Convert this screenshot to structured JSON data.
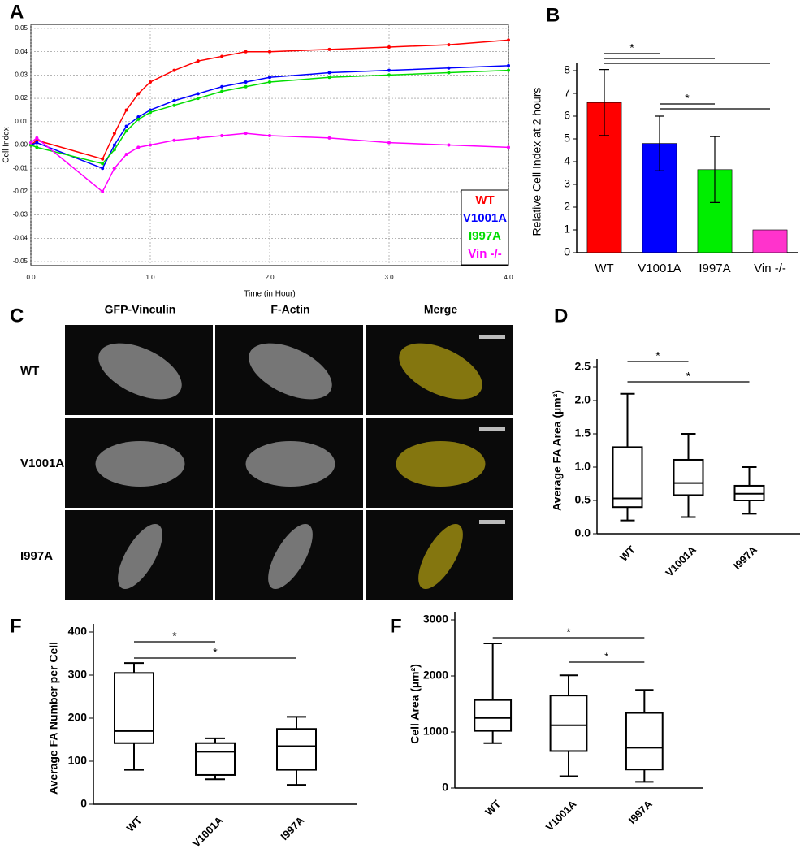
{
  "chart_data": [
    {
      "type": "line",
      "panel": "A",
      "xlabel": "Time (in Hour)",
      "ylabel": "Cell Index",
      "x": [
        0,
        0.05,
        0.6,
        0.7,
        0.8,
        0.9,
        1.0,
        1.2,
        1.4,
        1.6,
        1.8,
        2.0,
        2.5,
        3.0,
        3.5,
        4.0
      ],
      "series": [
        {
          "name": "WT",
          "color": "#ff0000",
          "values": [
            0,
            0.002,
            -0.006,
            0.005,
            0.015,
            0.022,
            0.027,
            0.032,
            0.036,
            0.038,
            0.04,
            0.04,
            0.041,
            0.042,
            0.043,
            0.045
          ]
        },
        {
          "name": "V1001A",
          "color": "#0000ff",
          "values": [
            0,
            0.001,
            -0.01,
            0,
            0.008,
            0.012,
            0.015,
            0.019,
            0.022,
            0.025,
            0.027,
            0.029,
            0.031,
            0.032,
            0.033,
            0.034
          ]
        },
        {
          "name": "I997A",
          "color": "#00dd00",
          "values": [
            0,
            -0.001,
            -0.008,
            -0.002,
            0.006,
            0.011,
            0.014,
            0.017,
            0.02,
            0.023,
            0.025,
            0.027,
            0.029,
            0.03,
            0.031,
            0.032
          ]
        },
        {
          "name": "Vin -/-",
          "color": "#ff00ff",
          "values": [
            0.001,
            0.003,
            -0.02,
            -0.01,
            -0.004,
            -0.001,
            0,
            0.002,
            0.003,
            0.004,
            0.005,
            0.004,
            0.003,
            0.001,
            0,
            -0.001
          ]
        }
      ],
      "xlim": [
        0,
        4
      ],
      "ylim": [
        -0.05,
        0.05
      ],
      "xticks": [
        {
          "value": 0,
          "label": "0.0"
        },
        {
          "value": 1,
          "label": "1.0"
        },
        {
          "value": 2,
          "label": "2.0"
        },
        {
          "value": 3,
          "label": "3.0"
        },
        {
          "value": 4,
          "label": "4.0"
        }
      ],
      "yticks": [
        0.05,
        0.04,
        0.03,
        0.02,
        0.01,
        {
          "value": 0,
          "label": "0.00"
        },
        -0.01,
        -0.02,
        -0.03,
        -0.04,
        -0.05
      ],
      "grid": true,
      "legend": "lower right"
    },
    {
      "type": "bar",
      "panel": "B",
      "ylabel": "Relative Cell Index at 2 hours",
      "categories": [
        "WT",
        "V1001A",
        "I997A",
        "Vin -/-"
      ],
      "values": [
        6.6,
        4.8,
        3.65,
        1
      ],
      "errors": [
        1.45,
        1.2,
        1.45,
        0
      ],
      "colors": [
        "#ff0000",
        "#0000ff",
        "#00ee00",
        "#ff33cc"
      ],
      "ylim": [
        0,
        8
      ],
      "yticks": [
        0,
        1,
        2,
        3,
        4,
        5,
        6,
        7,
        8
      ],
      "significance": [
        {
          "label": "*",
          "from": "WT",
          "to": [
            "V1001A",
            "I997A",
            "Vin -/-"
          ]
        },
        {
          "label": "*",
          "from": "V1001A",
          "to": [
            "I997A",
            "Vin -/-"
          ]
        }
      ]
    },
    {
      "type": "image",
      "panel": "C",
      "columns": [
        "GFP-Vinculin",
        "F-Actin",
        "Merge"
      ],
      "rows": [
        "WT",
        "V1001A",
        "I997A"
      ]
    },
    {
      "type": "box",
      "panel": "D",
      "ylabel": "Average FA Area (µm²)",
      "categories": [
        "WT",
        "V1001A",
        "I997A"
      ],
      "min": [
        0.2,
        0.25,
        0.3
      ],
      "q1": [
        0.4,
        0.58,
        0.5
      ],
      "median": [
        0.53,
        0.76,
        0.6
      ],
      "q3": [
        1.3,
        1.11,
        0.72
      ],
      "max": [
        2.1,
        1.5,
        1.0
      ],
      "ylim": [
        0,
        2.5
      ],
      "yticks": [
        {
          "value": 0,
          "label": "0.0"
        },
        0.5,
        {
          "value": 1,
          "label": "1.0"
        },
        1.5,
        {
          "value": 2,
          "label": "2.0"
        },
        2.5
      ],
      "significance": [
        {
          "label": "*",
          "from": "WT",
          "to": [
            "V1001A"
          ]
        },
        {
          "label": "*",
          "from": "WT",
          "to": [
            "I997A"
          ]
        }
      ]
    },
    {
      "type": "box",
      "panel": "F",
      "ylabel": "Average  FA Number per Cell",
      "categories": [
        "WT",
        "V1001A",
        "I997A"
      ],
      "min": [
        80,
        58,
        45
      ],
      "q1": [
        142,
        68,
        80
      ],
      "median": [
        170,
        122,
        135
      ],
      "q3": [
        305,
        142,
        175
      ],
      "max": [
        328,
        153,
        203
      ],
      "ylim": [
        0,
        400
      ],
      "yticks": [
        0,
        100,
        200,
        300,
        400
      ],
      "significance": [
        {
          "label": "*",
          "from": "WT",
          "to": [
            "V1001A"
          ]
        },
        {
          "label": "*",
          "from": "WT",
          "to": [
            "I997A"
          ]
        }
      ]
    },
    {
      "type": "box",
      "panel": "F",
      "ylabel": "Cell Area (µm²)",
      "categories": [
        "WT",
        "V1001A",
        "I997A"
      ],
      "min": [
        800,
        210,
        110
      ],
      "q1": [
        1020,
        660,
        330
      ],
      "median": [
        1250,
        1120,
        720
      ],
      "q3": [
        1570,
        1650,
        1340
      ],
      "max": [
        2580,
        2010,
        1750
      ],
      "ylim": [
        0,
        3000
      ],
      "yticks": [
        0,
        1000,
        2000,
        3000
      ],
      "significance": [
        {
          "label": "*",
          "from": "WT",
          "to": [
            "I997A"
          ]
        },
        {
          "label": "*",
          "from": "V1001A",
          "to": [
            "I997A"
          ]
        }
      ]
    }
  ]
}
